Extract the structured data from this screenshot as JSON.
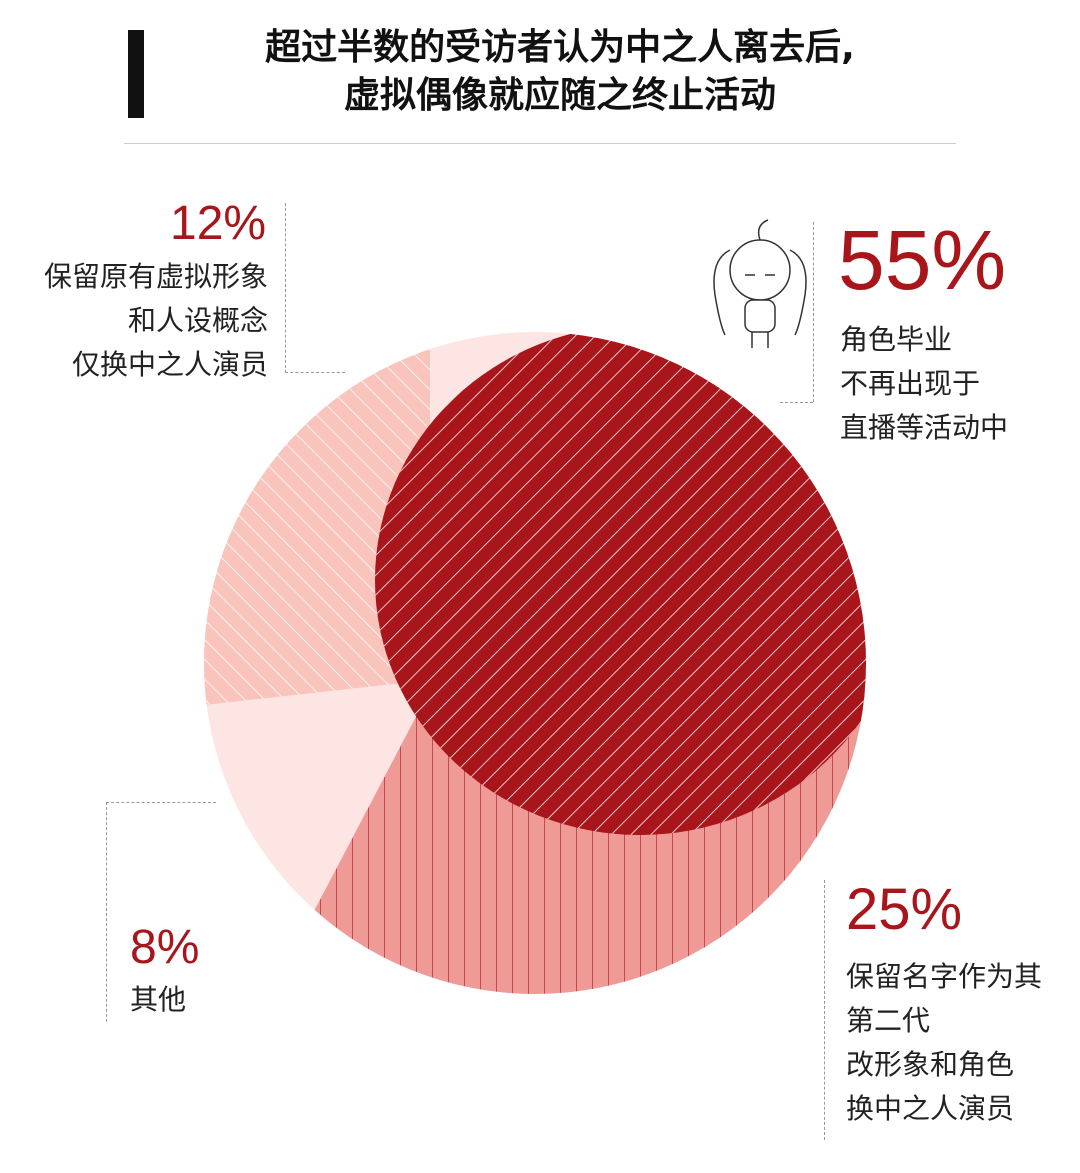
{
  "title_lines": [
    "超过半数的受访者认为中之人离去后,",
    "虚拟偶像就应随之终止活动"
  ],
  "chart_data": {
    "type": "pie",
    "title": "超过半数的受访者认为中之人离去后, 虚拟偶像就应随之终止活动",
    "slices": [
      {
        "label": "角色毕业 不再出现于 直播等活动中",
        "label_lines": [
          "角色毕业",
          "不再出现于",
          "直播等活动中"
        ],
        "value": 55,
        "value_text": "55%",
        "color": "#a8151b",
        "pattern": "diagonal-hatch"
      },
      {
        "label": "保留名字作为其第二代 改形象和角色 换中之人演员",
        "label_lines": [
          "保留名字作为其",
          "第二代",
          "改形象和角色",
          "换中之人演员"
        ],
        "value": 25,
        "value_text": "25%",
        "color": "#ef9a96",
        "pattern": "vertical-lines"
      },
      {
        "label": "保留原有虚拟形象和人设概念 仅换中之人演员",
        "label_lines": [
          "保留原有虚拟形象",
          "和人设概念",
          "仅换中之人演员"
        ],
        "value": 12,
        "value_text": "12%",
        "color": "#f9c4bb",
        "pattern": "diagonal-hatch"
      },
      {
        "label": "其他",
        "label_lines": [
          "其他"
        ],
        "value": 8,
        "value_text": "8%",
        "color": "#fde5e3",
        "pattern": "none"
      }
    ],
    "legend": "none"
  },
  "icons": {
    "mascot": "anime-girl-doodle-icon"
  }
}
